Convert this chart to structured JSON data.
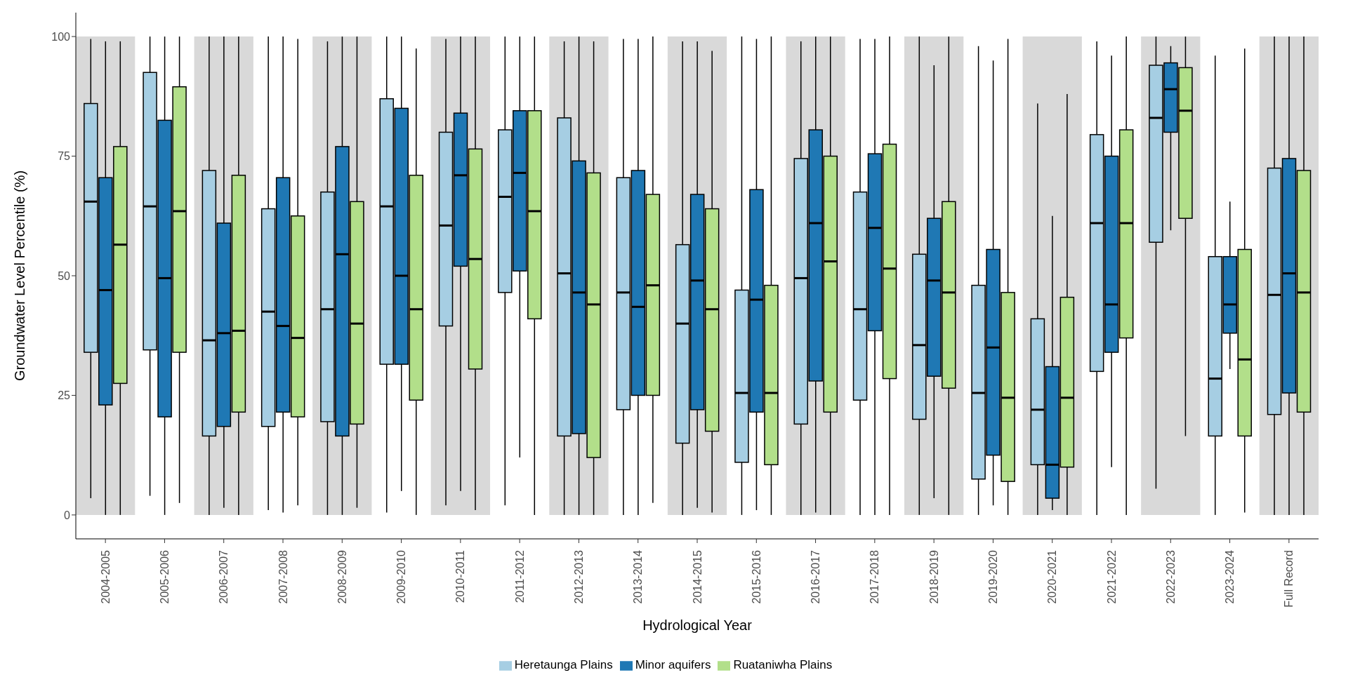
{
  "chart_data": {
    "type": "box",
    "xlabel": "Hydrological Year",
    "ylabel": "Groundwater Level Percentile (%)",
    "categories": [
      "2004-2005",
      "2005-2006",
      "2006-2007",
      "2007-2008",
      "2008-2009",
      "2009-2010",
      "2010-2011",
      "2011-2012",
      "2012-2013",
      "2013-2014",
      "2014-2015",
      "2015-2016",
      "2016-2017",
      "2017-2018",
      "2018-2019",
      "2019-2020",
      "2020-2021",
      "2021-2022",
      "2022-2023",
      "2023-2024",
      "Full Record"
    ],
    "ylim": [
      -5,
      105
    ],
    "yticks": [
      0,
      25,
      50,
      75,
      100
    ],
    "grid": false,
    "legend": "bottom",
    "bands": [
      {
        "axis": "x",
        "from": "2004-2005",
        "to": "2004-2005",
        "color": "#d9d9d9"
      },
      {
        "axis": "x",
        "from": "2006-2007",
        "to": "2006-2007",
        "color": "#d9d9d9"
      },
      {
        "axis": "x",
        "from": "2008-2009",
        "to": "2008-2009",
        "color": "#d9d9d9"
      },
      {
        "axis": "x",
        "from": "2010-2011",
        "to": "2010-2011",
        "color": "#d9d9d9"
      },
      {
        "axis": "x",
        "from": "2012-2013",
        "to": "2012-2013",
        "color": "#d9d9d9"
      },
      {
        "axis": "x",
        "from": "2014-2015",
        "to": "2014-2015",
        "color": "#d9d9d9"
      },
      {
        "axis": "x",
        "from": "2016-2017",
        "to": "2016-2017",
        "color": "#d9d9d9"
      },
      {
        "axis": "x",
        "from": "2018-2019",
        "to": "2018-2019",
        "color": "#d9d9d9"
      },
      {
        "axis": "x",
        "from": "2020-2021",
        "to": "2020-2021",
        "color": "#d9d9d9"
      },
      {
        "axis": "x",
        "from": "2022-2023",
        "to": "2022-2023",
        "color": "#d9d9d9"
      },
      {
        "axis": "x",
        "from": "Full Record",
        "to": "Full Record",
        "color": "#d9d9d9"
      }
    ],
    "series": [
      {
        "name": "Heretaunga Plains",
        "color": "#a6cee3",
        "boxes": [
          {
            "low": 3.5,
            "q1": 34,
            "median": 65.5,
            "q3": 86,
            "high": 99.5
          },
          {
            "low": 4,
            "q1": 34.5,
            "median": 64.5,
            "q3": 92.5,
            "high": 100
          },
          {
            "low": 0,
            "q1": 16.5,
            "median": 36.5,
            "q3": 72,
            "high": 100
          },
          {
            "low": 1,
            "q1": 18.5,
            "median": 42.5,
            "q3": 64,
            "high": 100
          },
          {
            "low": 0,
            "q1": 19.5,
            "median": 43,
            "q3": 67.5,
            "high": 99
          },
          {
            "low": 0.5,
            "q1": 31.5,
            "median": 64.5,
            "q3": 87,
            "high": 100
          },
          {
            "low": 2,
            "q1": 39.5,
            "median": 60.5,
            "q3": 80,
            "high": 99.5
          },
          {
            "low": 2,
            "q1": 46.5,
            "median": 66.5,
            "q3": 80.5,
            "high": 100
          },
          {
            "low": 0,
            "q1": 16.5,
            "median": 50.5,
            "q3": 83,
            "high": 99
          },
          {
            "low": 0,
            "q1": 22,
            "median": 46.5,
            "q3": 70.5,
            "high": 99.5
          },
          {
            "low": 0,
            "q1": 15,
            "median": 40,
            "q3": 56.5,
            "high": 99
          },
          {
            "low": 0,
            "q1": 11,
            "median": 25.5,
            "q3": 47,
            "high": 100
          },
          {
            "low": 0,
            "q1": 19,
            "median": 49.5,
            "q3": 74.5,
            "high": 99
          },
          {
            "low": 0,
            "q1": 24,
            "median": 43,
            "q3": 67.5,
            "high": 99.5
          },
          {
            "low": 0,
            "q1": 20,
            "median": 35.5,
            "q3": 54.5,
            "high": 100
          },
          {
            "low": 0,
            "q1": 7.5,
            "median": 25.5,
            "q3": 48,
            "high": 98
          },
          {
            "low": 0,
            "q1": 10.5,
            "median": 22,
            "q3": 41,
            "high": 86
          },
          {
            "low": 0,
            "q1": 30,
            "median": 61,
            "q3": 79.5,
            "high": 99
          },
          {
            "low": 5.5,
            "q1": 57,
            "median": 83,
            "q3": 94,
            "high": 100
          },
          {
            "low": 0,
            "q1": 16.5,
            "median": 28.5,
            "q3": 54,
            "high": 96
          },
          {
            "low": 0,
            "q1": 21,
            "median": 46,
            "q3": 72.5,
            "high": 100
          }
        ]
      },
      {
        "name": "Minor aquifers",
        "color": "#1f78b4",
        "boxes": [
          {
            "low": 0,
            "q1": 23,
            "median": 47,
            "q3": 70.5,
            "high": 99
          },
          {
            "low": 0,
            "q1": 20.5,
            "median": 49.5,
            "q3": 82.5,
            "high": 100
          },
          {
            "low": 1.5,
            "q1": 18.5,
            "median": 38,
            "q3": 61,
            "high": 100
          },
          {
            "low": 0.5,
            "q1": 21.5,
            "median": 39.5,
            "q3": 70.5,
            "high": 100
          },
          {
            "low": 0,
            "q1": 16.5,
            "median": 54.5,
            "q3": 77,
            "high": 100
          },
          {
            "low": 5,
            "q1": 31.5,
            "median": 50,
            "q3": 85,
            "high": 100
          },
          {
            "low": 5,
            "q1": 52,
            "median": 71,
            "q3": 84,
            "high": 100
          },
          {
            "low": 12,
            "q1": 51,
            "median": 71.5,
            "q3": 84.5,
            "high": 100
          },
          {
            "low": 0,
            "q1": 17,
            "median": 46.5,
            "q3": 74,
            "high": 100
          },
          {
            "low": 0,
            "q1": 25,
            "median": 43.5,
            "q3": 72,
            "high": 99.5
          },
          {
            "low": 1.5,
            "q1": 22,
            "median": 49,
            "q3": 67,
            "high": 99
          },
          {
            "low": 1,
            "q1": 21.5,
            "median": 45,
            "q3": 68,
            "high": 99.5
          },
          {
            "low": 0.5,
            "q1": 28,
            "median": 61,
            "q3": 80.5,
            "high": 100
          },
          {
            "low": 0,
            "q1": 38.5,
            "median": 60,
            "q3": 75.5,
            "high": 99.5
          },
          {
            "low": 3.5,
            "q1": 29,
            "median": 49,
            "q3": 62,
            "high": 94
          },
          {
            "low": 2,
            "q1": 12.5,
            "median": 35,
            "q3": 55.5,
            "high": 95
          },
          {
            "low": 1,
            "q1": 3.5,
            "median": 10.5,
            "q3": 31,
            "high": 62.5
          },
          {
            "low": 10,
            "q1": 34,
            "median": 44,
            "q3": 75,
            "high": 96
          },
          {
            "low": 59.5,
            "q1": 80,
            "median": 89,
            "q3": 94.5,
            "high": 98
          },
          {
            "low": 30.5,
            "q1": 38,
            "median": 44,
            "q3": 54,
            "high": 65.5
          },
          {
            "low": 0,
            "q1": 25.5,
            "median": 50.5,
            "q3": 74.5,
            "high": 100
          }
        ]
      },
      {
        "name": "Ruataniwha Plains",
        "color": "#b2df8a",
        "boxes": [
          {
            "low": 0,
            "q1": 27.5,
            "median": 56.5,
            "q3": 77,
            "high": 99
          },
          {
            "low": 2.5,
            "q1": 34,
            "median": 63.5,
            "q3": 89.5,
            "high": 100
          },
          {
            "low": 0,
            "q1": 21.5,
            "median": 38.5,
            "q3": 71,
            "high": 100
          },
          {
            "low": 2,
            "q1": 20.5,
            "median": 37,
            "q3": 62.5,
            "high": 99.5
          },
          {
            "low": 1.5,
            "q1": 19,
            "median": 40,
            "q3": 65.5,
            "high": 100
          },
          {
            "low": 0,
            "q1": 24,
            "median": 43,
            "q3": 71,
            "high": 97.5
          },
          {
            "low": 1,
            "q1": 30.5,
            "median": 53.5,
            "q3": 76.5,
            "high": 100
          },
          {
            "low": 0,
            "q1": 41,
            "median": 63.5,
            "q3": 84.5,
            "high": 100
          },
          {
            "low": 0,
            "q1": 12,
            "median": 44,
            "q3": 71.5,
            "high": 99
          },
          {
            "low": 2.5,
            "q1": 25,
            "median": 48,
            "q3": 67,
            "high": 100
          },
          {
            "low": 0.5,
            "q1": 17.5,
            "median": 43,
            "q3": 64,
            "high": 97
          },
          {
            "low": 0,
            "q1": 10.5,
            "median": 25.5,
            "q3": 48,
            "high": 100
          },
          {
            "low": 0,
            "q1": 21.5,
            "median": 53,
            "q3": 75,
            "high": 100
          },
          {
            "low": 0,
            "q1": 28.5,
            "median": 51.5,
            "q3": 77.5,
            "high": 100
          },
          {
            "low": 0,
            "q1": 26.5,
            "median": 46.5,
            "q3": 65.5,
            "high": 100
          },
          {
            "low": 0,
            "q1": 7,
            "median": 24.5,
            "q3": 46.5,
            "high": 99.5
          },
          {
            "low": 0,
            "q1": 10,
            "median": 24.5,
            "q3": 45.5,
            "high": 88
          },
          {
            "low": 0,
            "q1": 37,
            "median": 61,
            "q3": 80.5,
            "high": 100
          },
          {
            "low": 16.5,
            "q1": 62,
            "median": 84.5,
            "q3": 93.5,
            "high": 100
          },
          {
            "low": 0.5,
            "q1": 16.5,
            "median": 32.5,
            "q3": 55.5,
            "high": 97.5
          },
          {
            "low": 0,
            "q1": 21.5,
            "median": 46.5,
            "q3": 72,
            "high": 100
          }
        ]
      }
    ]
  }
}
